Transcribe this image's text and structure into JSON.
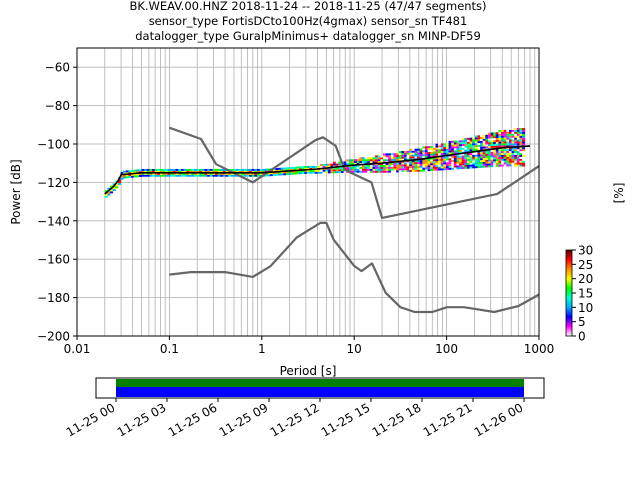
{
  "chart_data": {
    "type": "heatmap",
    "title_lines": [
      "BK.WEAV.00.HNZ   2018-11-24 -- 2018-11-25  (47/47 segments)",
      "sensor_type FortisDCto100Hz(4gmax) sensor_sn TF481",
      "datalogger_type GuralpMinimus+ datalogger_sn MINP-DF59"
    ],
    "xlabel": "Period [s]",
    "ylabel": "Power [dB]",
    "x_scale": "log",
    "xlim": [
      0.01,
      1000
    ],
    "ylim": [
      -200,
      -50
    ],
    "x_ticks": [
      {
        "value": 0.01,
        "label": "0.01"
      },
      {
        "value": 0.1,
        "label": "0.1"
      },
      {
        "value": 1,
        "label": "1"
      },
      {
        "value": 10,
        "label": "10"
      },
      {
        "value": 100,
        "label": "100"
      },
      {
        "value": 1000,
        "label": "1000"
      }
    ],
    "y_ticks": [
      -60,
      -80,
      -100,
      -120,
      -140,
      -160,
      -180,
      -200
    ],
    "grid": true,
    "colorbar": {
      "label": "[%]",
      "min": 0,
      "max": 30,
      "ticks": [
        0,
        5,
        10,
        15,
        20,
        25,
        30
      ],
      "colors": [
        "#ffffff",
        "#ff00ff",
        "#0000ff",
        "#00aaff",
        "#00ffcc",
        "#00ff00",
        "#ffff00",
        "#ff8800",
        "#ff0000",
        "#550000"
      ]
    },
    "noise_models": [
      {
        "points": [
          [
            0.1,
            -91.5
          ],
          [
            0.22,
            -97.4
          ],
          [
            0.32,
            -110.5
          ],
          [
            0.8,
            -120
          ],
          [
            3.8,
            -98
          ],
          [
            4.6,
            -96.5
          ],
          [
            6.3,
            -101
          ],
          [
            7.9,
            -113.5
          ],
          [
            15.4,
            -120
          ],
          [
            20,
            -138.5
          ],
          [
            354,
            -126
          ],
          [
            1000,
            -111.5
          ]
        ]
      },
      {
        "points": [
          [
            0.1,
            -168
          ],
          [
            0.17,
            -166.7
          ],
          [
            0.4,
            -166.7
          ],
          [
            0.8,
            -169.2
          ],
          [
            1.24,
            -163.7
          ],
          [
            2.4,
            -148.6
          ],
          [
            4.3,
            -141.1
          ],
          [
            5.0,
            -141.1
          ],
          [
            6.0,
            -149.9
          ],
          [
            10,
            -163.5
          ],
          [
            12,
            -166.2
          ],
          [
            15.6,
            -162.2
          ],
          [
            21.9,
            -177.5
          ],
          [
            31.6,
            -185
          ],
          [
            45,
            -187.5
          ],
          [
            70,
            -187.5
          ],
          [
            101,
            -185
          ],
          [
            154,
            -185
          ],
          [
            328,
            -187.5
          ],
          [
            600,
            -184.4
          ],
          [
            1000,
            -178.4
          ]
        ]
      }
    ],
    "mode_curve": [
      [
        0.02,
        -126
      ],
      [
        0.025,
        -122
      ],
      [
        0.028,
        -119
      ],
      [
        0.03,
        -116
      ],
      [
        0.05,
        -115
      ],
      [
        0.1,
        -115
      ],
      [
        0.3,
        -115
      ],
      [
        1,
        -115
      ],
      [
        2,
        -114
      ],
      [
        4,
        -113
      ],
      [
        10,
        -111
      ],
      [
        20,
        -110
      ],
      [
        50,
        -108
      ],
      [
        100,
        -106
      ],
      [
        200,
        -104
      ],
      [
        400,
        -102
      ],
      [
        800,
        -101
      ]
    ],
    "timeline": {
      "tick_labels": [
        "11-25 00",
        "11-25 03",
        "11-25 06",
        "11-25 09",
        "11-25 12",
        "11-25 15",
        "11-25 18",
        "11-25 21",
        "11-26 00"
      ],
      "bar_colors": [
        "#008000",
        "#0000ff"
      ]
    }
  }
}
